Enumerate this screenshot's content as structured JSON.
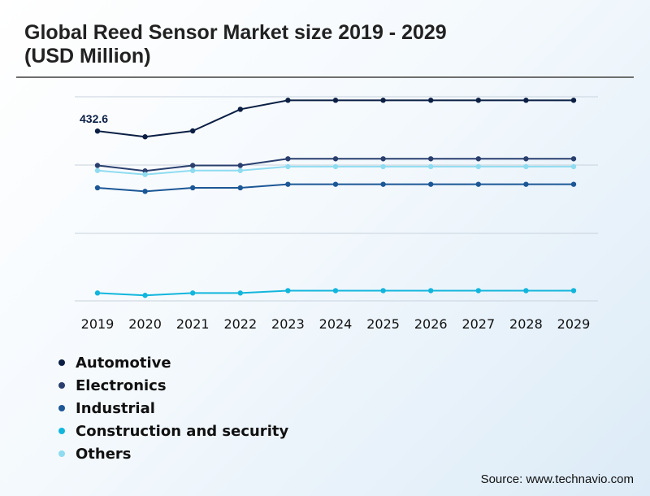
{
  "title_line1": "Global Reed Sensor Market size 2019 - 2029",
  "title_line2": "(USD Million)",
  "source": "Source: www.technavio.com",
  "colors": {
    "Automotive": "#0b1f44",
    "Electronics": "#2a3f6e",
    "Industrial": "#1c5796",
    "Construction and security": "#12b6dc",
    "Others": "#8fdcf0"
  },
  "chart_data": {
    "type": "line",
    "title": "Global Reed Sensor Market size 2019 - 2029 (USD Million)",
    "categories": [
      "2019",
      "2020",
      "2021",
      "2022",
      "2023",
      "2024",
      "2025",
      "2026",
      "2027",
      "2028",
      "2029"
    ],
    "grid": true,
    "legend_placement": "bottom-left",
    "ylim": [
      0,
      520
    ],
    "annotations": [
      {
        "series": "Automotive",
        "category": "2019",
        "text": "432.6"
      }
    ],
    "series": [
      {
        "name": "Automotive",
        "values": [
          432.6,
          418,
          433,
          488,
          511,
          511,
          511,
          511,
          511,
          511,
          511
        ]
      },
      {
        "name": "Electronics",
        "values": [
          345,
          331,
          345,
          345,
          362,
          362,
          362,
          362,
          362,
          362,
          362
        ]
      },
      {
        "name": "Others",
        "values": [
          332,
          322,
          332,
          332,
          342,
          342,
          342,
          342,
          342,
          342,
          342
        ]
      },
      {
        "name": "Industrial",
        "values": [
          288,
          279,
          288,
          288,
          297,
          297,
          297,
          297,
          297,
          297,
          297
        ]
      },
      {
        "name": "Construction and security",
        "values": [
          20,
          14,
          20,
          20,
          26,
          26,
          26,
          26,
          26,
          26,
          26
        ]
      }
    ]
  },
  "legend": [
    {
      "label": "Automotive",
      "color": "#0b1f44"
    },
    {
      "label": "Electronics",
      "color": "#2a3f6e"
    },
    {
      "label": "Industrial",
      "color": "#1c5796"
    },
    {
      "label": "Construction and security",
      "color": "#12b6dc"
    },
    {
      "label": "Others",
      "color": "#8fdcf0"
    }
  ]
}
